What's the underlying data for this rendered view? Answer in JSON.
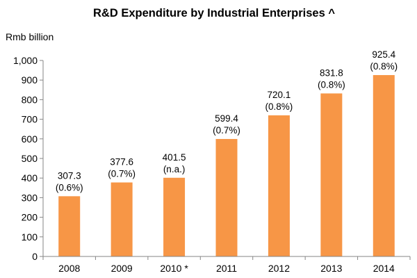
{
  "chart_data": {
    "type": "bar",
    "title": "R&D Expenditure by Industrial Enterprises ^",
    "ylabel": "Rmb billion",
    "xlabel": "",
    "categories": [
      "2008",
      "2009",
      "2010 *",
      "2011",
      "2012",
      "2013",
      "2014"
    ],
    "values": [
      307.3,
      377.6,
      401.5,
      599.4,
      720.1,
      831.8,
      925.4
    ],
    "value_labels": [
      "307.3",
      "377.6",
      "401.5",
      "599.4",
      "720.1",
      "831.8",
      "925.4"
    ],
    "share_labels": [
      "(0.6%)",
      "(0.7%)",
      "(n.a.)",
      "(0.7%)",
      "(0.8%)",
      "(0.8%)",
      "(0.8%)"
    ],
    "ylim": [
      0,
      1000
    ],
    "yticks": [
      0,
      100,
      200,
      300,
      400,
      500,
      600,
      700,
      800,
      900,
      1000
    ],
    "ytick_labels": [
      "0",
      "100",
      "200",
      "300",
      "400",
      "500",
      "600",
      "700",
      "800",
      "900",
      "1,000"
    ],
    "grid": false,
    "legend": "none",
    "bar_color": "#F79646",
    "axis_color": "#868686"
  }
}
